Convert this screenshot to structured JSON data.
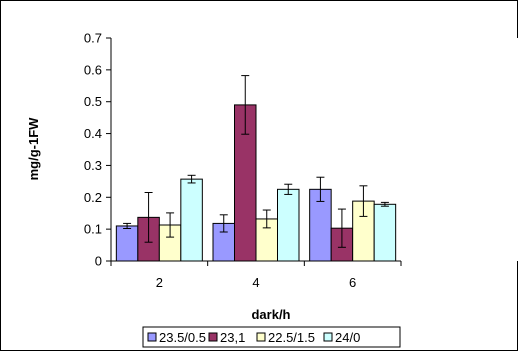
{
  "chart_data": {
    "type": "bar",
    "title": "",
    "xlabel": "dark/h",
    "ylabel": "mg/g-1FW",
    "categories": [
      "2",
      "4",
      "6"
    ],
    "ylim": [
      0,
      0.7
    ],
    "yticks": [
      "0",
      "0.1",
      "0.2",
      "0.3",
      "0.4",
      "0.5",
      "0.6",
      "0.7"
    ],
    "grid": false,
    "legend_position": "bottom",
    "series": [
      {
        "name": "23.5/0.5",
        "color": "#9999FF",
        "values": [
          0.11,
          0.118,
          0.225
        ],
        "errors": [
          0.008,
          0.027,
          0.038
        ]
      },
      {
        "name": "23,1",
        "color": "#993366",
        "values": [
          0.137,
          0.49,
          0.103
        ],
        "errors": [
          0.078,
          0.092,
          0.06
        ]
      },
      {
        "name": "22.5/1.5",
        "color": "#FFFFCC",
        "values": [
          0.113,
          0.132,
          0.188
        ],
        "errors": [
          0.038,
          0.028,
          0.048
        ]
      },
      {
        "name": "24/0",
        "color": "#CCFFFF",
        "values": [
          0.257,
          0.225,
          0.178
        ],
        "errors": [
          0.012,
          0.016,
          0.006
        ]
      }
    ]
  }
}
